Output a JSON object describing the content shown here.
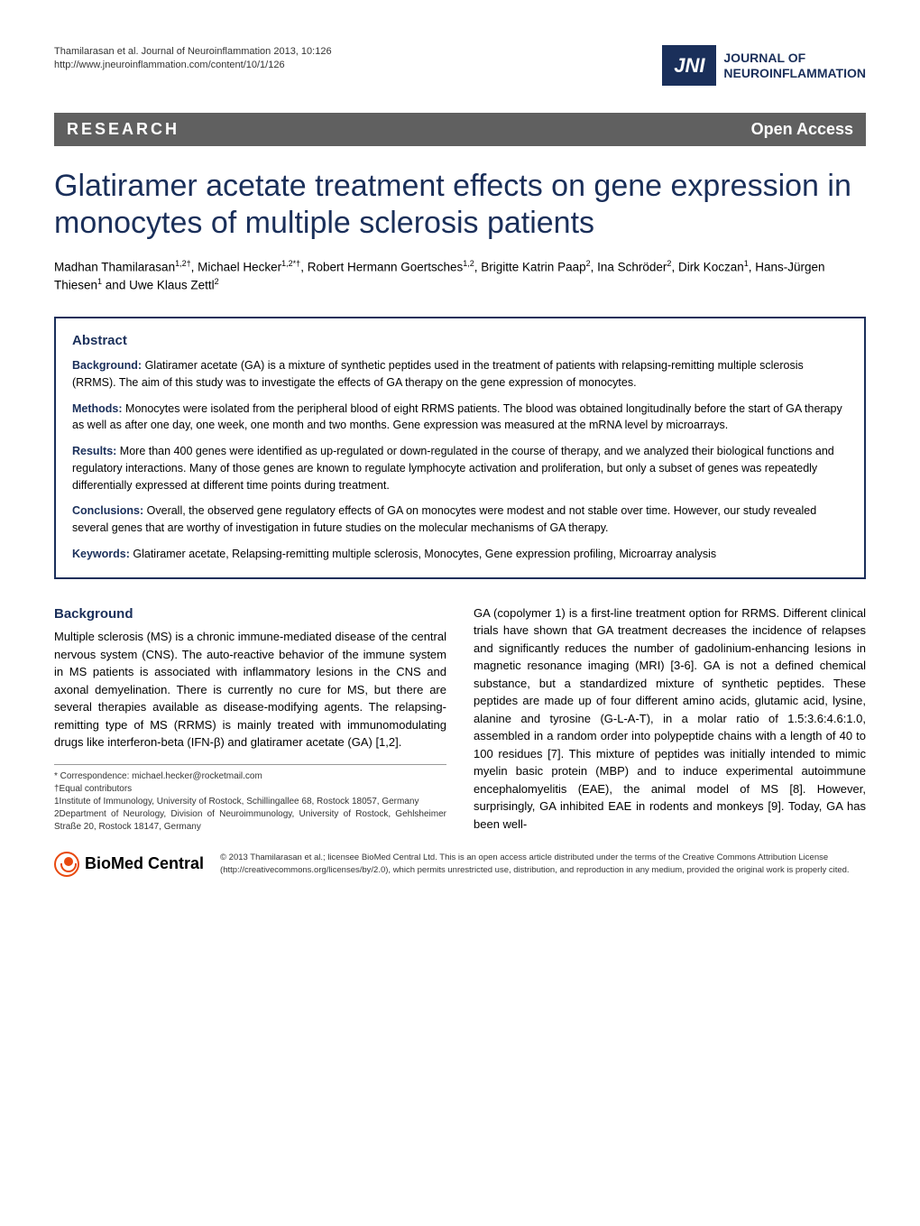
{
  "header": {
    "citation_line1": "Thamilarasan et al. Journal of Neuroinflammation 2013, 10:126",
    "citation_line2": "http://www.jneuroinflammation.com/content/10/1/126",
    "logo_abbrev": "JNI",
    "journal_name_line1": "JOURNAL OF",
    "journal_name_line2": "NEUROINFLAMMATION"
  },
  "banner": {
    "left": "RESEARCH",
    "right": "Open Access"
  },
  "title": "Glatiramer acetate treatment effects on gene expression in monocytes of multiple sclerosis patients",
  "authors_html": "Madhan Thamilarasan<sup>1,2†</sup>, Michael Hecker<sup>1,2*†</sup>, Robert Hermann Goertsches<sup>1,2</sup>, Brigitte Katrin Paap<sup>2</sup>, Ina Schröder<sup>2</sup>, Dirk Koczan<sup>1</sup>, Hans-Jürgen Thiesen<sup>1</sup> and Uwe Klaus Zettl<sup>2</sup>",
  "abstract": {
    "title": "Abstract",
    "background": {
      "label": "Background:",
      "text": " Glatiramer acetate (GA) is a mixture of synthetic peptides used in the treatment of patients with relapsing-remitting multiple sclerosis (RRMS). The aim of this study was to investigate the effects of GA therapy on the gene expression of monocytes."
    },
    "methods": {
      "label": "Methods:",
      "text": " Monocytes were isolated from the peripheral blood of eight RRMS patients. The blood was obtained longitudinally before the start of GA therapy as well as after one day, one week, one month and two months. Gene expression was measured at the mRNA level by microarrays."
    },
    "results": {
      "label": "Results:",
      "text": " More than 400 genes were identified as up-regulated or down-regulated in the course of therapy, and we analyzed their biological functions and regulatory interactions. Many of those genes are known to regulate lymphocyte activation and proliferation, but only a subset of genes was repeatedly differentially expressed at different time points during treatment."
    },
    "conclusions": {
      "label": "Conclusions:",
      "text": " Overall, the observed gene regulatory effects of GA on monocytes were modest and not stable over time. However, our study revealed several genes that are worthy of investigation in future studies on the molecular mechanisms of GA therapy."
    },
    "keywords": {
      "label": "Keywords:",
      "text": " Glatiramer acetate, Relapsing-remitting multiple sclerosis, Monocytes, Gene expression profiling, Microarray analysis"
    }
  },
  "body": {
    "left": {
      "heading": "Background",
      "text": "Multiple sclerosis (MS) is a chronic immune-mediated disease of the central nervous system (CNS). The auto-reactive behavior of the immune system in MS patients is associated with inflammatory lesions in the CNS and axonal demyelination. There is currently no cure for MS, but there are several therapies available as disease-modifying agents. The relapsing-remitting type of MS (RRMS) is mainly treated with immunomodulating drugs like interferon-beta (IFN-β) and glatiramer acetate (GA) [1,2]."
    },
    "right": {
      "text": "GA (copolymer 1) is a first-line treatment option for RRMS. Different clinical trials have shown that GA treatment decreases the incidence of relapses and significantly reduces the number of gadolinium-enhancing lesions in magnetic resonance imaging (MRI) [3-6]. GA is not a defined chemical substance, but a standardized mixture of synthetic peptides. These peptides are made up of four different amino acids, glutamic acid, lysine, alanine and tyrosine (G-L-A-T), in a molar ratio of 1.5:3.6:4.6:1.0, assembled in a random order into polypeptide chains with a length of 40 to 100 residues [7]. This mixture of peptides was initially intended to mimic myelin basic protein (MBP) and to induce experimental autoimmune encephalomyelitis (EAE), the animal model of MS [8]. However, surprisingly, GA inhibited EAE in rodents and monkeys [9]. Today, GA has been well-"
    }
  },
  "footnotes": {
    "correspondence": "* Correspondence: michael.hecker@rocketmail.com",
    "equal": "†Equal contributors",
    "aff1": "1Institute of Immunology, University of Rostock, Schillingallee 68, Rostock 18057, Germany",
    "aff2": "2Department of Neurology, Division of Neuroimmunology, University of Rostock, Gehlsheimer Straße 20, Rostock 18147, Germany"
  },
  "footer": {
    "logo_text1": "BioMed",
    "logo_text2": " Central",
    "license": "© 2013 Thamilarasan et al.; licensee BioMed Central Ltd. This is an open access article distributed under the terms of the Creative Commons Attribution License (http://creativecommons.org/licenses/by/2.0), which permits unrestricted use, distribution, and reproduction in any medium, provided the original work is properly cited."
  },
  "colors": {
    "primary": "#1a2f5a",
    "banner_bg": "#606060",
    "accent": "#e8490f"
  }
}
